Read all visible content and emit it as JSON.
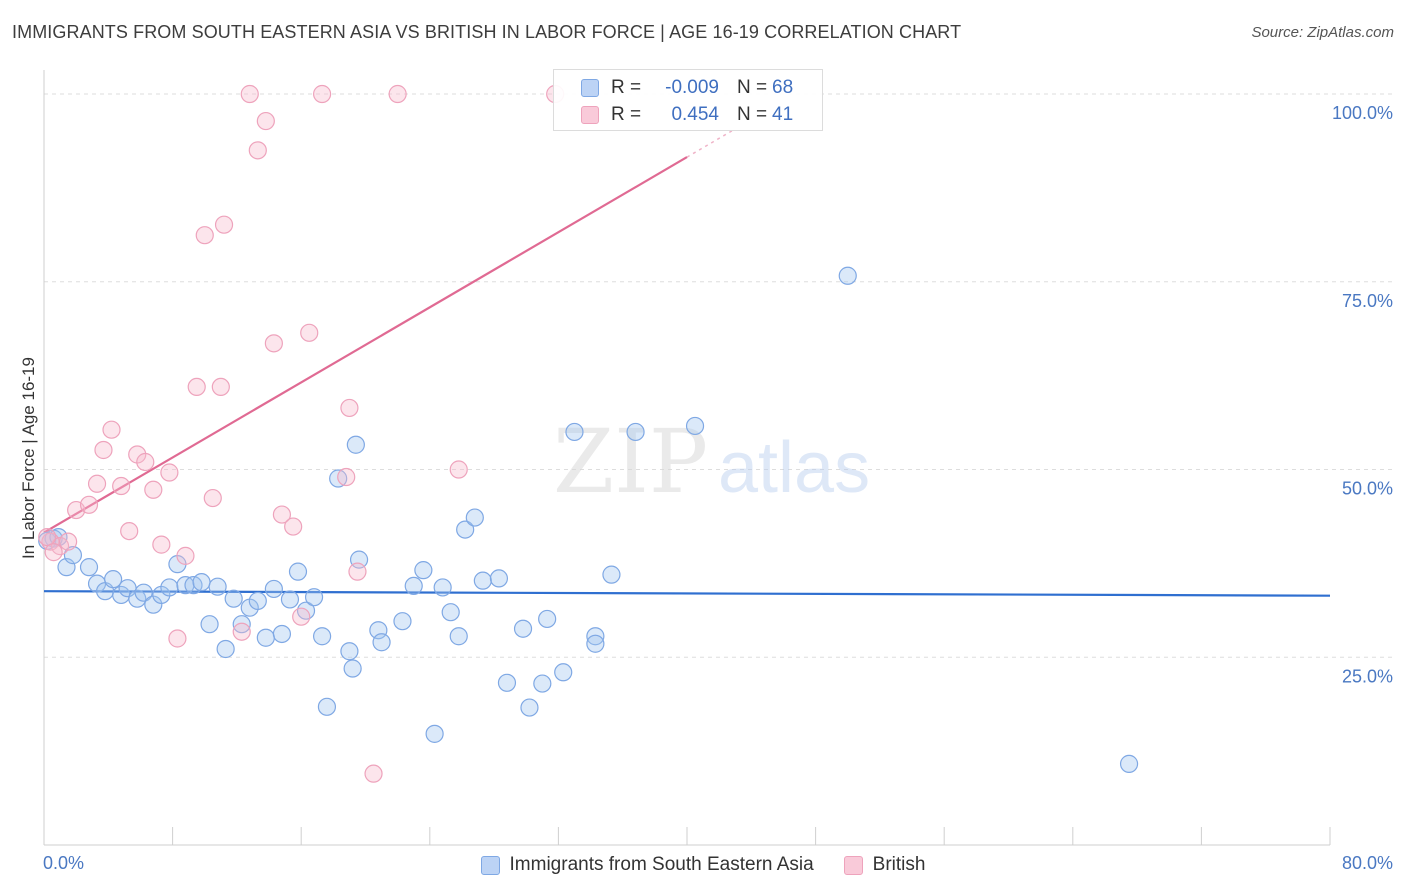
{
  "header": {
    "title": "IMMIGRANTS FROM SOUTH EASTERN ASIA VS BRITISH IN LABOR FORCE | AGE 16-19 CORRELATION CHART",
    "source": "Source: ZipAtlas.com"
  },
  "watermark": {
    "zip": "ZIP",
    "atlas": "atlas"
  },
  "legend": {
    "rows": [
      {
        "r_label": "R =",
        "r_value": "-0.009",
        "n_label": "N =",
        "n_value": "68"
      },
      {
        "r_label": "R =",
        "r_value": "0.454",
        "n_label": "N =",
        "n_value": "41"
      }
    ]
  },
  "chart_data": {
    "type": "scatter",
    "title": "IMMIGRANTS FROM SOUTH EASTERN ASIA VS BRITISH IN LABOR FORCE | AGE 16-19 CORRELATION CHART",
    "xlabel": "",
    "ylabel": "In Labor Force | Age 16-19",
    "xlim": [
      0,
      80
    ],
    "ylim": [
      0,
      102
    ],
    "x_tick_labels": {
      "left": "0.0%",
      "right": "80.0%"
    },
    "y_ticks": [
      {
        "value": 25,
        "label": "25.0%"
      },
      {
        "value": 50,
        "label": "50.0%"
      },
      {
        "value": 75,
        "label": "75.0%"
      },
      {
        "value": 100,
        "label": "100.0%"
      }
    ],
    "grid": true,
    "series": [
      {
        "name": "Immigrants from South Eastern Asia",
        "color": "#8db4ea",
        "line_color": "#2f6fd0",
        "trend": {
          "x0": 0,
          "y0": 33.8,
          "x1": 80,
          "y1": 33.2
        },
        "points": [
          [
            0.6,
            40.8
          ],
          [
            1.4,
            37.0
          ],
          [
            1.8,
            38.6
          ],
          [
            2.8,
            37.0
          ],
          [
            3.3,
            34.8
          ],
          [
            3.8,
            33.8
          ],
          [
            4.3,
            35.4
          ],
          [
            4.8,
            33.3
          ],
          [
            5.2,
            34.2
          ],
          [
            5.8,
            32.8
          ],
          [
            6.2,
            33.6
          ],
          [
            6.8,
            32.0
          ],
          [
            7.3,
            33.3
          ],
          [
            7.8,
            34.3
          ],
          [
            8.3,
            37.4
          ],
          [
            8.8,
            34.6
          ],
          [
            9.3,
            34.6
          ],
          [
            9.8,
            35.0
          ],
          [
            10.3,
            29.4
          ],
          [
            10.8,
            34.4
          ],
          [
            11.3,
            26.1
          ],
          [
            11.8,
            32.8
          ],
          [
            12.3,
            29.4
          ],
          [
            12.8,
            31.6
          ],
          [
            13.3,
            32.5
          ],
          [
            13.8,
            27.6
          ],
          [
            14.3,
            34.1
          ],
          [
            14.8,
            28.1
          ],
          [
            15.3,
            32.7
          ],
          [
            15.8,
            36.4
          ],
          [
            16.3,
            31.2
          ],
          [
            16.8,
            33.0
          ],
          [
            17.3,
            27.8
          ],
          [
            17.6,
            18.4
          ],
          [
            18.3,
            48.8
          ],
          [
            19.0,
            25.8
          ],
          [
            19.2,
            23.5
          ],
          [
            19.4,
            53.3
          ],
          [
            19.6,
            38.0
          ],
          [
            20.8,
            28.6
          ],
          [
            21.0,
            27.0
          ],
          [
            22.3,
            29.8
          ],
          [
            23.0,
            34.5
          ],
          [
            23.6,
            36.6
          ],
          [
            24.3,
            14.8
          ],
          [
            24.8,
            34.3
          ],
          [
            25.3,
            31.0
          ],
          [
            25.8,
            27.8
          ],
          [
            26.2,
            42.0
          ],
          [
            26.8,
            43.6
          ],
          [
            27.3,
            35.2
          ],
          [
            28.3,
            35.5
          ],
          [
            28.8,
            21.6
          ],
          [
            29.8,
            28.8
          ],
          [
            30.2,
            18.3
          ],
          [
            31.0,
            21.5
          ],
          [
            31.3,
            30.1
          ],
          [
            32.3,
            23.0
          ],
          [
            33.0,
            55.0
          ],
          [
            34.3,
            27.8
          ],
          [
            34.3,
            26.8
          ],
          [
            35.3,
            36.0
          ],
          [
            36.8,
            55.0
          ],
          [
            40.5,
            55.8
          ],
          [
            50.0,
            75.8
          ],
          [
            67.5,
            10.8
          ],
          [
            0.2,
            40.5
          ],
          [
            0.9,
            41.0
          ]
        ]
      },
      {
        "name": "British",
        "color": "#f2a7bf",
        "line_color": "#e06a93",
        "trend": {
          "x0": 0,
          "y0": 41.6,
          "x1": 40,
          "y1": 91.6
        },
        "points": [
          [
            0.4,
            40.4
          ],
          [
            1.0,
            39.8
          ],
          [
            1.5,
            40.4
          ],
          [
            2.0,
            44.6
          ],
          [
            2.8,
            45.3
          ],
          [
            3.3,
            48.1
          ],
          [
            3.7,
            52.6
          ],
          [
            4.2,
            55.3
          ],
          [
            4.8,
            47.8
          ],
          [
            5.3,
            41.8
          ],
          [
            5.8,
            52.0
          ],
          [
            6.3,
            51.0
          ],
          [
            6.8,
            47.3
          ],
          [
            7.3,
            40.0
          ],
          [
            7.8,
            49.6
          ],
          [
            8.3,
            27.5
          ],
          [
            8.8,
            38.5
          ],
          [
            9.5,
            61.0
          ],
          [
            10.0,
            81.2
          ],
          [
            10.5,
            46.2
          ],
          [
            11.0,
            61.0
          ],
          [
            11.2,
            82.6
          ],
          [
            12.3,
            28.4
          ],
          [
            12.8,
            100.0
          ],
          [
            13.3,
            92.5
          ],
          [
            13.8,
            96.4
          ],
          [
            14.3,
            66.8
          ],
          [
            14.8,
            44.0
          ],
          [
            15.5,
            42.4
          ],
          [
            16.0,
            30.4
          ],
          [
            16.5,
            68.2
          ],
          [
            17.3,
            100.0
          ],
          [
            18.8,
            49.0
          ],
          [
            19.0,
            58.2
          ],
          [
            19.5,
            36.4
          ],
          [
            20.5,
            9.5
          ],
          [
            22.0,
            100.0
          ],
          [
            25.8,
            50.0
          ],
          [
            31.8,
            100.0
          ],
          [
            0.2,
            41.0
          ],
          [
            0.6,
            39.0
          ]
        ]
      }
    ]
  }
}
